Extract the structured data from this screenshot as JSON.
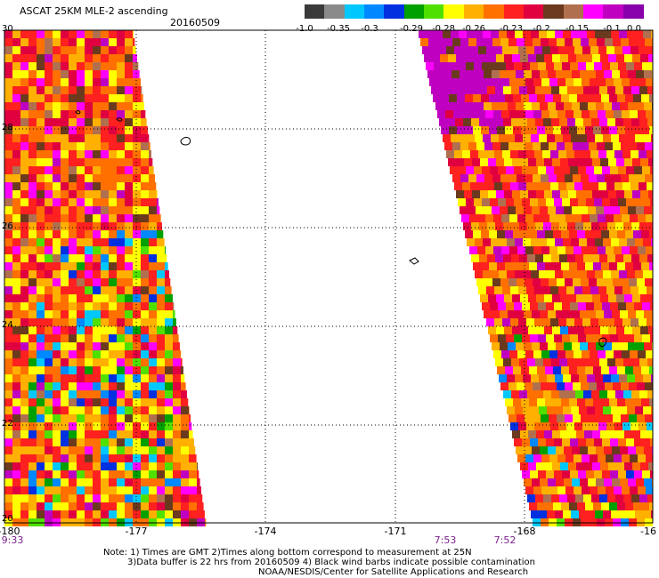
{
  "header": {
    "title": "ASCAT 25KM MLE-2 ascending",
    "date": "20160509"
  },
  "legend": {
    "colors": [
      "#3a3a3a",
      "#8a8a8a",
      "#00c8ff",
      "#0088ff",
      "#0030e0",
      "#00a000",
      "#50e000",
      "#ffff00",
      "#ffb000",
      "#ff7000",
      "#ff2020",
      "#e00040",
      "#6b3a1e",
      "#b07050",
      "#ff00ff",
      "#c000c0",
      "#8800aa"
    ],
    "labels": [
      "-1.0",
      "-0.35",
      "-0.3",
      "-0.29",
      "-0.28",
      "-0.26",
      "-0.23",
      "-0.2",
      "-0.15",
      "-0.1",
      "0.0"
    ]
  },
  "axes": {
    "x_ticks": [
      "-180",
      "-177",
      "-174",
      "-171",
      "-168",
      "-16"
    ],
    "y_ticks": [
      "30",
      "28",
      "26",
      "24",
      "22",
      "20"
    ],
    "times": [
      "9:33",
      "7:53",
      "7:52"
    ]
  },
  "map": {
    "lon_range": [
      -180,
      -165
    ],
    "lat_range": [
      20,
      30
    ],
    "grid": true
  },
  "notes": {
    "line1": "Note: 1) Times are GMT 2)Times along bottom correspond to measurement at 25N",
    "line2": "3)Data buffer is 22 hrs from 20160509 4) Black wind barbs indicate possible contamination",
    "line3": "NOAA/NESDIS/Center for Satellite Applications and Research"
  }
}
